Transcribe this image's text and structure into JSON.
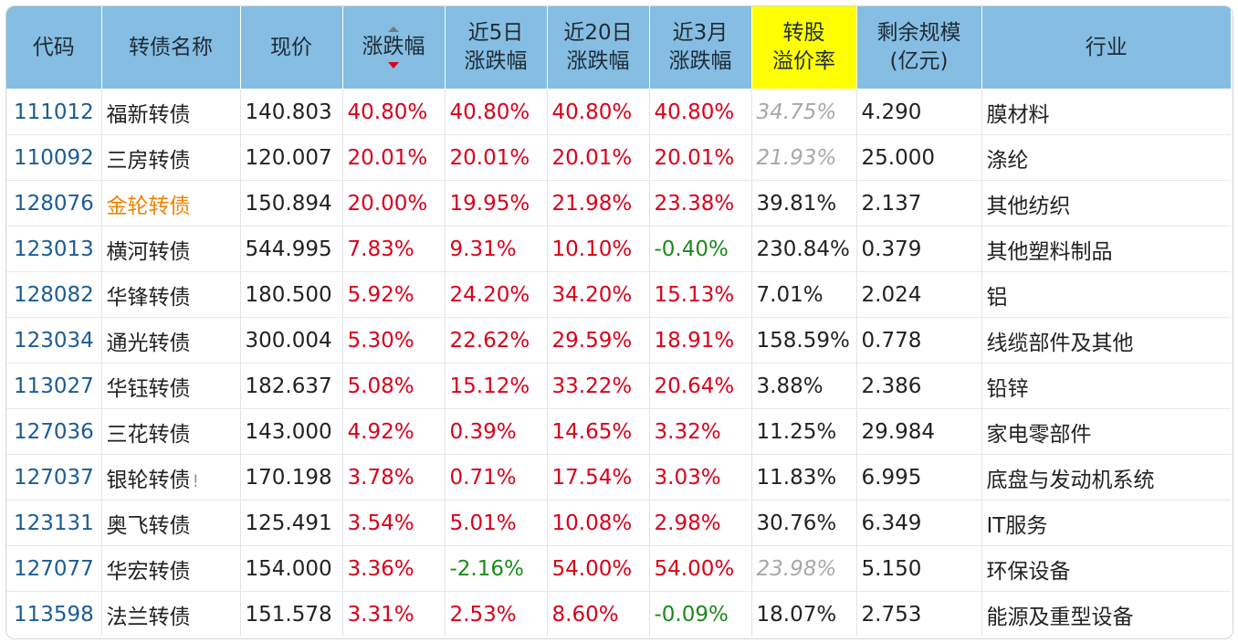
{
  "headers": {
    "code": "代码",
    "name": "转债名称",
    "price": "现价",
    "change": "涨跌幅",
    "chg5_l1": "近5日",
    "chg5_l2": "涨跌幅",
    "chg20_l1": "近20日",
    "chg20_l2": "涨跌幅",
    "chg3m_l1": "近3月",
    "chg3m_l2": "涨跌幅",
    "premium_l1": "转股",
    "premium_l2": "溢价率",
    "size_l1": "剩余规模",
    "size_l2": "(亿元)",
    "industry": "行业"
  },
  "sort": {
    "column": "change",
    "direction": "desc"
  },
  "colors": {
    "header_bg": "#86bde2",
    "highlight_header": "#ffff00",
    "up": "#d9001b",
    "down": "#1a8a1a",
    "code": "#1a5c96",
    "flag": "#f08300",
    "muted": "#a8a8a8"
  },
  "rows": [
    {
      "code": "111012",
      "name": "福新转债",
      "price": "140.803",
      "change": "40.80%",
      "chg5": "40.80%",
      "chg20": "40.80%",
      "chg3m": "40.80%",
      "premium": "34.75%",
      "size": "4.290",
      "industry": "膜材料"
    },
    {
      "code": "110092",
      "name": "三房转债",
      "price": "120.007",
      "change": "20.01%",
      "chg5": "20.01%",
      "chg20": "20.01%",
      "chg3m": "20.01%",
      "premium": "21.93%",
      "size": "25.000",
      "industry": "涤纶"
    },
    {
      "code": "128076",
      "name": "金轮转债",
      "price": "150.894",
      "change": "20.00%",
      "chg5": "19.95%",
      "chg20": "21.98%",
      "chg3m": "23.38%",
      "premium": "39.81%",
      "size": "2.137",
      "industry": "其他纺织"
    },
    {
      "code": "123013",
      "name": "横河转债",
      "price": "544.995",
      "change": "7.83%",
      "chg5": "9.31%",
      "chg20": "10.10%",
      "chg3m": "-0.40%",
      "premium": "230.84%",
      "size": "0.379",
      "industry": "其他塑料制品"
    },
    {
      "code": "128082",
      "name": "华锋转债",
      "price": "180.500",
      "change": "5.92%",
      "chg5": "24.20%",
      "chg20": "34.20%",
      "chg3m": "15.13%",
      "premium": "7.01%",
      "size": "2.024",
      "industry": "铝"
    },
    {
      "code": "123034",
      "name": "通光转债",
      "price": "300.004",
      "change": "5.30%",
      "chg5": "22.62%",
      "chg20": "29.59%",
      "chg3m": "18.91%",
      "premium": "158.59%",
      "size": "0.778",
      "industry": "线缆部件及其他"
    },
    {
      "code": "113027",
      "name": "华钰转债",
      "price": "182.637",
      "change": "5.08%",
      "chg5": "15.12%",
      "chg20": "33.22%",
      "chg3m": "20.64%",
      "premium": "3.88%",
      "size": "2.386",
      "industry": "铅锌"
    },
    {
      "code": "127036",
      "name": "三花转债",
      "price": "143.000",
      "change": "4.92%",
      "chg5": "0.39%",
      "chg20": "14.65%",
      "chg3m": "3.32%",
      "premium": "11.25%",
      "size": "29.984",
      "industry": "家电零部件"
    },
    {
      "code": "127037",
      "name": "银轮转债",
      "flag": "!",
      "price": "170.198",
      "change": "3.78%",
      "chg5": "0.71%",
      "chg20": "17.54%",
      "chg3m": "3.03%",
      "premium": "11.83%",
      "size": "6.995",
      "industry": "底盘与发动机系统"
    },
    {
      "code": "123131",
      "name": "奥飞转债",
      "price": "125.491",
      "change": "3.54%",
      "chg5": "5.01%",
      "chg20": "10.08%",
      "chg3m": "2.98%",
      "premium": "30.76%",
      "size": "6.349",
      "industry": "IT服务"
    },
    {
      "code": "127077",
      "name": "华宏转债",
      "price": "154.000",
      "change": "3.36%",
      "chg5": "-2.16%",
      "chg20": "54.00%",
      "chg3m": "54.00%",
      "premium": "23.98%",
      "size": "5.150",
      "industry": "环保设备"
    },
    {
      "code": "113598",
      "name": "法兰转债",
      "price": "151.578",
      "change": "3.31%",
      "chg5": "2.53%",
      "chg20": "8.60%",
      "chg3m": "-0.09%",
      "premium": "18.07%",
      "size": "2.753",
      "industry": "能源及重型设备"
    }
  ]
}
